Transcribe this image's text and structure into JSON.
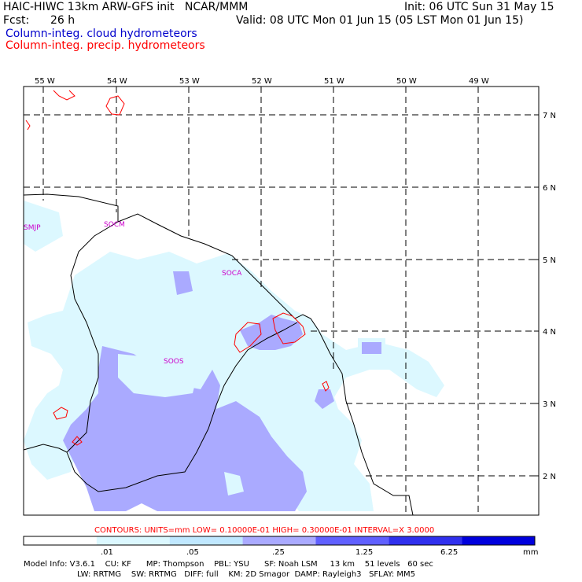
{
  "header": {
    "title": "HAIC-HIWC 13km ARW-GFS init   NCAR/MMM",
    "init": "Init: 06 UTC Sun 31 May 15",
    "fcst_label": "Fcst:",
    "fcst_value": "26 h",
    "valid": "Valid: 08 UTC Mon 01 Jun 15 (05 LST Mon 01 Jun 15)",
    "field1": "Column-integ. cloud hydrometeors",
    "field2": "Column-integ. precip. hydrometeors"
  },
  "colors": {
    "cloud_label": "#0000cc",
    "precip_label": "#ff0000",
    "shade_light": "#dcf8ff",
    "shade_mid": "#aaaaff",
    "shade_dark": "#6060ff",
    "station": "#cc00cc"
  },
  "map": {
    "lon_labels": [
      "55 W",
      "54 W",
      "53 W",
      "52 W",
      "51 W",
      "50 W",
      "49 W"
    ],
    "lat_labels": [
      "7 N",
      "6 N",
      "5 N",
      "4 N",
      "3 N",
      "2 N"
    ],
    "stations": [
      "SMJP",
      "SOCM",
      "SOCA",
      "SOOS"
    ]
  },
  "contours_note": "CONTOURS:  UNITS=mm  LOW= 0.10000E-01  HIGH= 0.30000E-01  INTERVAL=X  3.0000",
  "colorbar": {
    "ticks": [
      ".01",
      ".05",
      ".25",
      "1.25",
      "6.25"
    ],
    "units": "mm",
    "colors": [
      "#ffffff",
      "#dcf8ff",
      "#c0e8ff",
      "#aaaaff",
      "#6060ff",
      "#3030ee",
      "#0000dd"
    ]
  },
  "footer": {
    "line1": "Model Info: V3.6.1    CU: KF      MP: Thompson    PBL: YSU      SF: Noah LSM     13 km    51 levels   60 sec",
    "line2": "LW: RRTMG    SW: RRTMG   DIFF: full    KM: 2D Smagor  DAMP: Rayleigh3   SFLAY: MM5"
  }
}
